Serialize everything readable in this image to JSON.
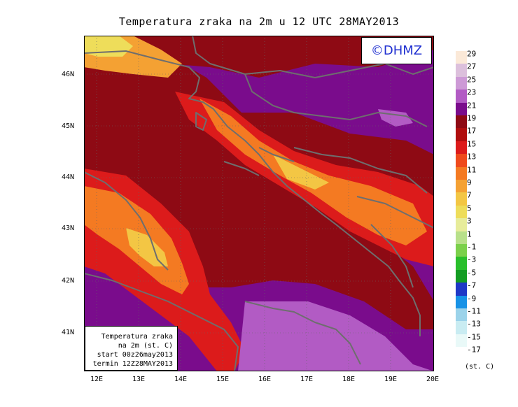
{
  "title": "Temperatura zraka na 2m u 12 UTC 28MAY2013",
  "logo_text": "©DHMZ",
  "info": {
    "line1": "Temperatura zraka",
    "line2": "na 2m (st. C)",
    "line3": "start 00z26may2013",
    "line4": "termin 12Z28MAY2013"
  },
  "lat_labels": [
    "46N",
    "45N",
    "44N",
    "43N",
    "42N",
    "41N"
  ],
  "lon_labels": [
    "12E",
    "13E",
    "14E",
    "15E",
    "16E",
    "17E",
    "18E",
    "19E",
    "20E"
  ],
  "legend": {
    "labels": [
      "29",
      "27",
      "25",
      "23",
      "21",
      "19",
      "17",
      "15",
      "13",
      "11",
      "9",
      "7",
      "5",
      "3",
      "1",
      "-1",
      "-3",
      "-5",
      "-7",
      "-9",
      "-11",
      "-13",
      "-15",
      "-17"
    ],
    "colors": [
      "#fbe9d8",
      "#dcc0dc",
      "#cd9ad6",
      "#b25bc4",
      "#7a0c8c",
      "#8e0a14",
      "#b00e0e",
      "#dc1b1b",
      "#ef4a1c",
      "#f47a22",
      "#f4a133",
      "#f3c644",
      "#eedd5a",
      "#e7ec9a",
      "#b8e08a",
      "#7bd04b",
      "#29bf2b",
      "#139c22",
      "#1f38c6",
      "#1792e6",
      "#9bd3ea",
      "#c9ecf2",
      "#e9f9f8"
    ],
    "unit": "(st. C)"
  }
}
